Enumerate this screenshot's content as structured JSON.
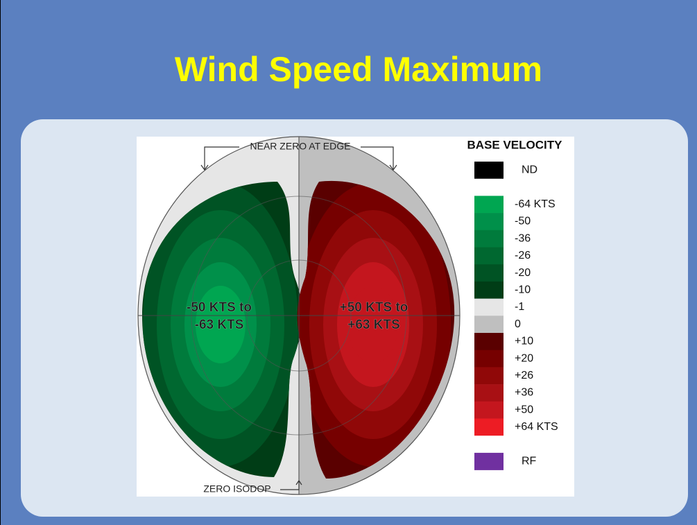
{
  "title": "Wind Speed Maximum",
  "diagram": {
    "top_label": "NEAR ZERO AT EDGE",
    "bottom_label": "ZERO ISODOP",
    "left_lobe": [
      "-50 KTS to",
      "-63 KTS"
    ],
    "right_lobe": [
      "+50 KTS to",
      "+63 KTS"
    ]
  },
  "legend": {
    "title": "BASE VELOCITY",
    "entries": [
      {
        "color": "#000000",
        "label": "ND"
      },
      {
        "color": "#ffffff"
      },
      {
        "color": "#00a651",
        "label": "-64 KTS"
      },
      {
        "color": "#00904a",
        "label": "-50"
      },
      {
        "color": "#007b3c",
        "label": "-36"
      },
      {
        "color": "#006830",
        "label": "-26"
      },
      {
        "color": "#005324",
        "label": "-20"
      },
      {
        "color": "#003d16",
        "label": "-10"
      },
      {
        "color": "#e6e6e6",
        "label": "-1"
      },
      {
        "color": "#bfbfbf",
        "label": "0"
      },
      {
        "color": "#5a0000",
        "label": "+10"
      },
      {
        "color": "#760000",
        "label": "+20"
      },
      {
        "color": "#900808",
        "label": "+26"
      },
      {
        "color": "#a81014",
        "label": "+36"
      },
      {
        "color": "#c4161e",
        "label": "+50"
      },
      {
        "color": "#ed1c24",
        "label": "+64 KTS"
      },
      {
        "color": "#ffffff"
      },
      {
        "color": "#7030a0",
        "label": "RF"
      }
    ]
  }
}
